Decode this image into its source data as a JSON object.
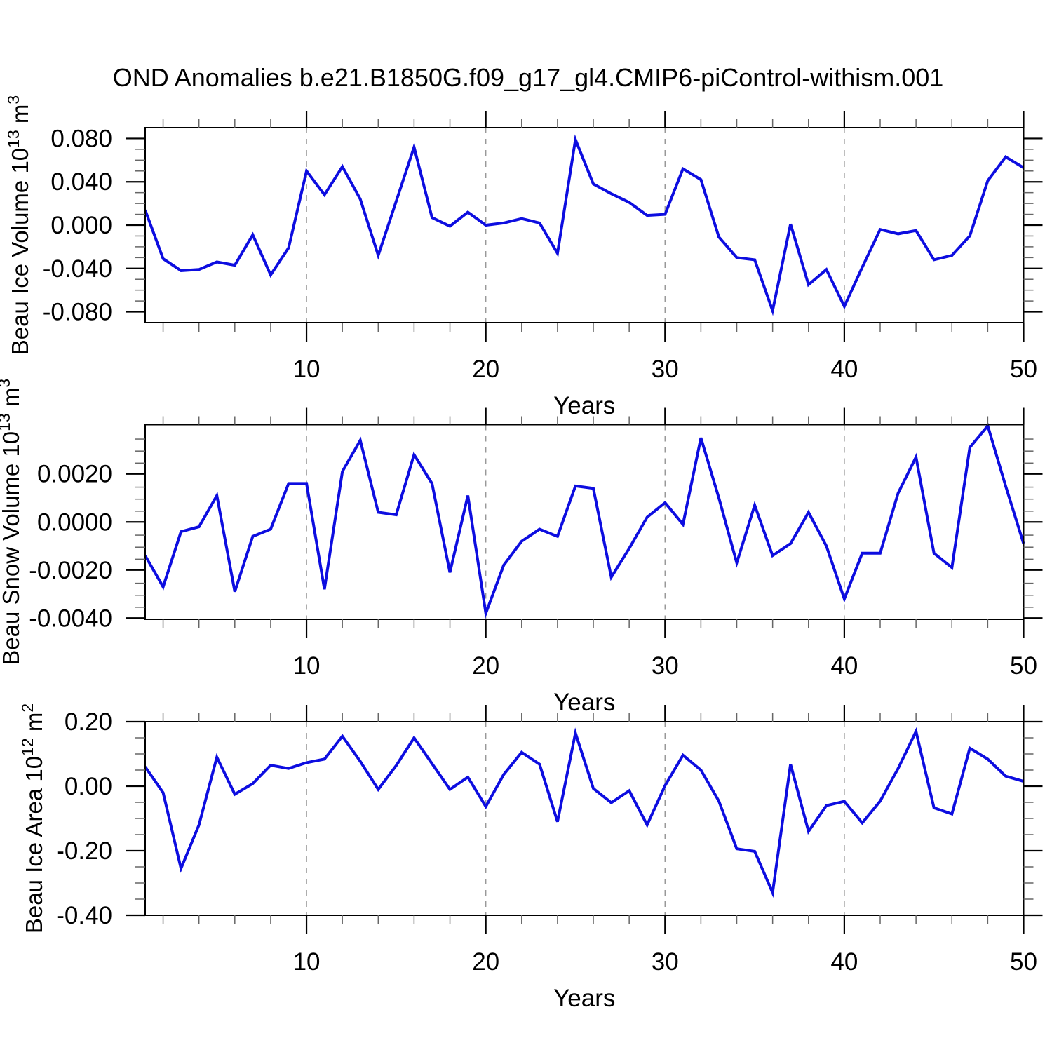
{
  "title": "OND Anomalies b.e21.B1850G.f09_g17_gl4.CMIP6-piControl-withism.001",
  "xlabel": "Years",
  "line_color": "#0d0de0",
  "grid_color": "#999999",
  "axis_color": "#000000",
  "minor_tick_color": "#666666",
  "x": [
    1,
    2,
    3,
    4,
    5,
    6,
    7,
    8,
    9,
    10,
    11,
    12,
    13,
    14,
    15,
    16,
    17,
    18,
    19,
    20,
    21,
    22,
    23,
    24,
    25,
    26,
    27,
    28,
    29,
    30,
    31,
    32,
    33,
    34,
    35,
    36,
    37,
    38,
    39,
    40,
    41,
    42,
    43,
    44,
    45,
    46,
    47,
    48,
    49,
    50
  ],
  "xlim": [
    1,
    50
  ],
  "x_major_ticks": [
    10,
    20,
    30,
    40,
    50
  ],
  "x_minor_step": 2,
  "x_gridlines": [
    10,
    20,
    30,
    40
  ],
  "chart_data": [
    {
      "type": "line",
      "name": "beau-ice-volume",
      "ylabel": "Beau Ice Volume 10^13 m^3",
      "ylabel_parts": [
        {
          "t": "Beau Ice Volume 10"
        },
        {
          "t": "13",
          "sup": true
        },
        {
          "t": " m"
        },
        {
          "t": "3",
          "sup": true
        }
      ],
      "xlabel": "Years",
      "ylim": [
        -0.09,
        0.09
      ],
      "yticks": [
        {
          "v": 0.08,
          "label": "0.080"
        },
        {
          "v": 0.04,
          "label": "0.040"
        },
        {
          "v": 0.0,
          "label": "0.000"
        },
        {
          "v": -0.04,
          "label": "-0.040"
        },
        {
          "v": -0.08,
          "label": "-0.080"
        }
      ],
      "yminor_step": 0.01,
      "values": [
        0.014,
        -0.031,
        -0.042,
        -0.041,
        -0.034,
        -0.037,
        -0.009,
        -0.046,
        -0.021,
        0.05,
        0.028,
        0.054,
        0.024,
        -0.028,
        0.022,
        0.072,
        0.007,
        -0.001,
        0.012,
        0.0,
        0.002,
        0.006,
        0.002,
        -0.026,
        0.079,
        0.038,
        0.029,
        0.021,
        0.009,
        0.01,
        0.052,
        0.042,
        -0.011,
        -0.03,
        -0.032,
        -0.079,
        0.001,
        -0.055,
        -0.041,
        -0.075,
        -0.039,
        -0.004,
        -0.008,
        -0.005,
        -0.032,
        -0.028,
        -0.01,
        0.041,
        0.063,
        0.053
      ]
    },
    {
      "type": "line",
      "name": "beau-snow-volume",
      "ylabel": "Beau Snow Volume 10^13 m^3",
      "ylabel_parts": [
        {
          "t": "Beau Snow Volume 10"
        },
        {
          "t": "13",
          "sup": true
        },
        {
          "t": " m"
        },
        {
          "t": "3",
          "sup": true
        }
      ],
      "xlabel": "Years",
      "ylim": [
        -0.00405,
        0.00405
      ],
      "yticks": [
        {
          "v": 0.002,
          "label": "0.0020"
        },
        {
          "v": 0.0,
          "label": "0.0000"
        },
        {
          "v": -0.002,
          "label": "-0.0020"
        },
        {
          "v": -0.004,
          "label": "-0.0040"
        }
      ],
      "yminor_step": 0.0005,
      "values": [
        -0.0014,
        -0.0027,
        -0.0004,
        -0.0002,
        0.0011,
        -0.0029,
        -0.0006,
        -0.0003,
        0.0016,
        0.0016,
        -0.0028,
        0.0021,
        0.0034,
        0.0004,
        0.0003,
        0.0028,
        0.0016,
        -0.0021,
        0.0011,
        -0.0038,
        -0.0018,
        -0.0008,
        -0.0003,
        -0.0006,
        0.0015,
        0.0014,
        -0.0023,
        -0.0011,
        0.0002,
        0.0008,
        -0.0001,
        0.0035,
        0.001,
        -0.0017,
        0.0007,
        -0.0014,
        -0.0009,
        0.0004,
        -0.001,
        -0.0032,
        -0.0013,
        -0.0013,
        0.0012,
        0.0027,
        -0.0013,
        -0.0019,
        0.0031,
        0.004,
        0.0015,
        -0.0009
      ]
    },
    {
      "type": "line",
      "name": "beau-ice-area",
      "ylabel": "Beau Ice Area 10^12 m^2",
      "ylabel_parts": [
        {
          "t": "Beau Ice Area 10"
        },
        {
          "t": "12",
          "sup": true
        },
        {
          "t": " m"
        },
        {
          "t": "2",
          "sup": true
        }
      ],
      "xlabel": "Years",
      "ylim": [
        -0.4,
        0.2
      ],
      "yticks": [
        {
          "v": 0.2,
          "label": "0.20"
        },
        {
          "v": 0.0,
          "label": "0.00"
        },
        {
          "v": -0.2,
          "label": "-0.20"
        },
        {
          "v": -0.4,
          "label": "-0.40"
        }
      ],
      "yminor_step": 0.05,
      "values": [
        0.06,
        -0.02,
        -0.255,
        -0.12,
        0.09,
        -0.025,
        0.008,
        0.065,
        0.055,
        0.073,
        0.084,
        0.155,
        0.077,
        -0.01,
        0.064,
        0.15,
        0.07,
        -0.01,
        0.028,
        -0.063,
        0.036,
        0.105,
        0.068,
        -0.11,
        0.165,
        -0.007,
        -0.051,
        -0.014,
        -0.12,
        0.002,
        0.096,
        0.05,
        -0.046,
        -0.194,
        -0.202,
        -0.33,
        0.068,
        -0.14,
        -0.06,
        -0.047,
        -0.114,
        -0.046,
        0.055,
        0.17,
        -0.067,
        -0.086,
        0.118,
        0.084,
        0.031,
        0.015
      ]
    }
  ]
}
